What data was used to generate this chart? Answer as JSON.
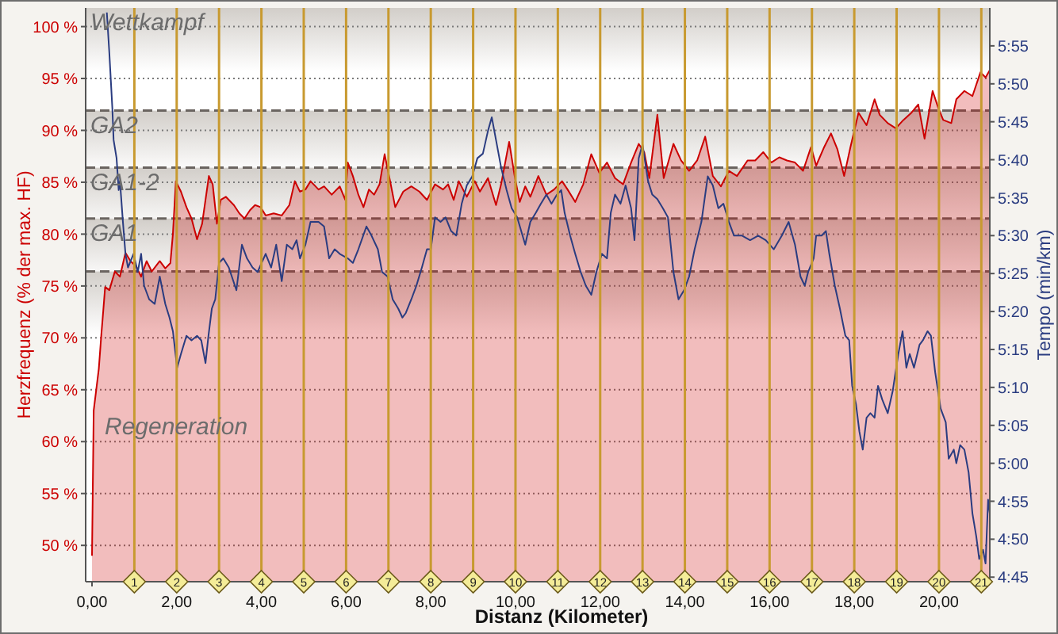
{
  "chart_data": {
    "type": "area",
    "xlabel": "Distanz (Kilometer)",
    "ylabel": "Herzfrequenz (% der max. HF)",
    "y2label": "Tempo (min/km)",
    "xlim": [
      -0.15,
      21.2
    ],
    "xticks": [
      {
        "value": 0,
        "label": "0,00"
      },
      {
        "value": 2,
        "label": "2,00"
      },
      {
        "value": 4,
        "label": "4,00"
      },
      {
        "value": 6,
        "label": "6,00"
      },
      {
        "value": 8,
        "label": "8,00"
      },
      {
        "value": 10,
        "label": "10,00"
      },
      {
        "value": 12,
        "label": "12,00"
      },
      {
        "value": 14,
        "label": "14,00"
      },
      {
        "value": 16,
        "label": "16,00"
      },
      {
        "value": 18,
        "label": "18,00"
      },
      {
        "value": 20,
        "label": "20,00"
      }
    ],
    "ylim": [
      46.5,
      101.8
    ],
    "yticks": [
      {
        "value": 50,
        "label": "50 %"
      },
      {
        "value": 55,
        "label": "55 %"
      },
      {
        "value": 60,
        "label": "60 %"
      },
      {
        "value": 65,
        "label": "65 %"
      },
      {
        "value": 70,
        "label": "70 %"
      },
      {
        "value": 75,
        "label": "75 %"
      },
      {
        "value": 80,
        "label": "80 %"
      },
      {
        "value": 85,
        "label": "85 %"
      },
      {
        "value": 90,
        "label": "90 %"
      },
      {
        "value": 95,
        "label": "95 %"
      },
      {
        "value": 100,
        "label": "100 %"
      }
    ],
    "y2lim": [
      4.74,
      6.0
    ],
    "y2ticks": [
      {
        "value": 4.75,
        "label": "4:45"
      },
      {
        "value": 4.8333,
        "label": "4:50"
      },
      {
        "value": 4.9167,
        "label": "4:55"
      },
      {
        "value": 5,
        "label": "5:00"
      },
      {
        "value": 5.0833,
        "label": "5:05"
      },
      {
        "value": 5.1667,
        "label": "5:10"
      },
      {
        "value": 5.25,
        "label": "5:15"
      },
      {
        "value": 5.3333,
        "label": "5:20"
      },
      {
        "value": 5.4167,
        "label": "5:25"
      },
      {
        "value": 5.5,
        "label": "5:30"
      },
      {
        "value": 5.5833,
        "label": "5:35"
      },
      {
        "value": 5.6667,
        "label": "5:40"
      },
      {
        "value": 5.75,
        "label": "5:45"
      },
      {
        "value": 5.8333,
        "label": "5:50"
      },
      {
        "value": 5.9167,
        "label": "5:55"
      }
    ],
    "grid": "y",
    "marker": "none",
    "series": [
      {
        "type": "area",
        "color": "#cc0000",
        "x": [
          0,
          0.04,
          0.16,
          0.22,
          0.25,
          0.31,
          0.41,
          0.54,
          0.66,
          0.79,
          0.91,
          1.04,
          1.16,
          1.29,
          1.41,
          1.6,
          1.73,
          1.85,
          1.91,
          1.98,
          2.1,
          2.23,
          2.35,
          2.48,
          2.6,
          2.76,
          2.85,
          2.95,
          3.04,
          3.16,
          3.35,
          3.48,
          3.6,
          3.73,
          3.85,
          3.98,
          4.1,
          4.29,
          4.48,
          4.66,
          4.79,
          4.91,
          5.04,
          5.16,
          5.35,
          5.48,
          5.66,
          5.85,
          5.98,
          6.04,
          6.16,
          6.29,
          6.41,
          6.54,
          6.66,
          6.79,
          6.91,
          7.04,
          7.16,
          7.35,
          7.54,
          7.73,
          7.91,
          8.1,
          8.29,
          8.41,
          8.54,
          8.66,
          8.85,
          9.04,
          9.16,
          9.35,
          9.54,
          9.66,
          9.85,
          9.98,
          10.1,
          10.23,
          10.35,
          10.54,
          10.73,
          10.91,
          11.1,
          11.23,
          11.41,
          11.6,
          11.79,
          11.98,
          12.16,
          12.35,
          12.54,
          12.73,
          12.91,
          13.04,
          13.16,
          13.35,
          13.5,
          13.73,
          13.91,
          14.1,
          14.29,
          14.48,
          14.66,
          14.85,
          15.04,
          15.23,
          15.48,
          15.66,
          15.85,
          16.04,
          16.23,
          16.41,
          16.6,
          16.79,
          16.98,
          17.1,
          17.29,
          17.45,
          17.6,
          17.76,
          17.91,
          18.1,
          18.29,
          18.48,
          18.6,
          18.79,
          18.98,
          19.16,
          19.35,
          19.51,
          19.66,
          19.85,
          19.98,
          20.1,
          20.29,
          20.41,
          20.6,
          20.79,
          20.98,
          21.1,
          21.2
        ],
        "values": [
          49,
          63,
          67,
          70.3,
          71.8,
          74.9,
          74.6,
          76.4,
          75.9,
          78.2,
          77.4,
          76.9,
          75.9,
          77.4,
          76.4,
          77.4,
          76.7,
          77.2,
          80.0,
          85.1,
          84.1,
          82.6,
          81.5,
          79.5,
          81.0,
          85.6,
          84.8,
          81.0,
          83.3,
          83.6,
          82.8,
          82.0,
          81.5,
          82.3,
          82.8,
          82.6,
          81.8,
          82.0,
          81.8,
          82.8,
          85.1,
          84.1,
          84.3,
          85.1,
          84.3,
          84.6,
          83.8,
          84.6,
          83.3,
          86.9,
          85.6,
          83.8,
          82.6,
          84.3,
          83.8,
          84.8,
          87.7,
          85.1,
          82.6,
          84.1,
          84.6,
          84.1,
          83.3,
          84.8,
          84.3,
          84.8,
          83.3,
          85.1,
          83.6,
          85.1,
          84.1,
          85.4,
          82.8,
          84.8,
          88.9,
          85.6,
          83.1,
          84.6,
          83.6,
          85.6,
          83.8,
          84.3,
          85.1,
          84.3,
          83.1,
          84.8,
          87.7,
          85.9,
          86.9,
          85.4,
          84.8,
          86.9,
          88.7,
          87.9,
          85.4,
          91.5,
          85.4,
          88.7,
          87.1,
          86.1,
          87.1,
          89.4,
          85.6,
          84.6,
          86.1,
          85.6,
          87.1,
          87.1,
          87.9,
          86.9,
          87.4,
          87.1,
          86.9,
          86.1,
          88.4,
          86.6,
          88.4,
          89.7,
          88.2,
          85.6,
          88.4,
          91.7,
          90.5,
          93.0,
          91.5,
          90.7,
          90.2,
          91.0,
          91.7,
          92.5,
          89.2,
          93.8,
          92.2,
          91.0,
          90.7,
          93.0,
          93.8,
          93.3,
          95.6,
          95.1,
          95.8
        ]
      },
      {
        "type": "line",
        "axis": "y2",
        "color": "#2a3c80",
        "x": [
          0.35,
          0.41,
          0.48,
          0.51,
          0.58,
          0.63,
          0.66,
          0.73,
          0.79,
          0.85,
          0.98,
          1.08,
          1.16,
          1.23,
          1.35,
          1.48,
          1.6,
          1.73,
          1.83,
          1.91,
          2.01,
          2.1,
          2.23,
          2.35,
          2.48,
          2.58,
          2.68,
          2.75,
          2.83,
          2.91,
          3.0,
          3.1,
          3.23,
          3.41,
          3.54,
          3.66,
          3.79,
          3.91,
          4.1,
          4.23,
          4.35,
          4.48,
          4.6,
          4.73,
          4.83,
          4.91,
          5.04,
          5.16,
          5.35,
          5.48,
          5.6,
          5.73,
          5.85,
          6.04,
          6.16,
          6.29,
          6.48,
          6.6,
          6.75,
          6.85,
          6.98,
          7.1,
          7.23,
          7.33,
          7.41,
          7.54,
          7.66,
          7.79,
          7.91,
          8.0,
          8.1,
          8.23,
          8.35,
          8.48,
          8.6,
          8.73,
          8.85,
          8.98,
          9.1,
          9.23,
          9.35,
          9.44,
          9.54,
          9.66,
          9.79,
          9.91,
          10.04,
          10.23,
          10.35,
          10.48,
          10.6,
          10.73,
          10.85,
          10.98,
          11.08,
          11.16,
          11.29,
          11.41,
          11.54,
          11.66,
          11.79,
          11.91,
          12.04,
          12.16,
          12.25,
          12.35,
          12.48,
          12.6,
          12.73,
          12.81,
          12.91,
          13.0,
          13.13,
          13.23,
          13.35,
          13.48,
          13.6,
          13.73,
          13.85,
          13.98,
          14.1,
          14.23,
          14.39,
          14.54,
          14.66,
          14.79,
          14.91,
          15.04,
          15.16,
          15.35,
          15.54,
          15.73,
          15.91,
          16.1,
          16.29,
          16.45,
          16.6,
          16.73,
          16.83,
          16.91,
          17.04,
          17.1,
          17.23,
          17.33,
          17.41,
          17.54,
          17.66,
          17.79,
          17.88,
          17.95,
          18.04,
          18.12,
          18.2,
          18.29,
          18.38,
          18.48,
          18.56,
          18.66,
          18.79,
          18.91,
          19.04,
          19.14,
          19.23,
          19.31,
          19.41,
          19.54,
          19.62,
          19.73,
          19.81,
          19.91,
          20.04,
          20.16,
          20.23,
          20.35,
          20.41,
          20.5,
          20.6,
          20.7,
          20.79,
          20.88,
          20.95,
          21.04,
          21.1,
          21.16,
          21.2
        ],
        "values": [
          5.99,
          5.9,
          5.78,
          5.71,
          5.67,
          5.6,
          5.62,
          5.53,
          5.46,
          5.43,
          5.46,
          5.42,
          5.46,
          5.39,
          5.36,
          5.35,
          5.41,
          5.35,
          5.32,
          5.29,
          5.21,
          5.24,
          5.28,
          5.27,
          5.28,
          5.27,
          5.22,
          5.28,
          5.34,
          5.36,
          5.44,
          5.45,
          5.43,
          5.38,
          5.48,
          5.45,
          5.43,
          5.42,
          5.46,
          5.43,
          5.48,
          5.4,
          5.48,
          5.47,
          5.49,
          5.45,
          5.48,
          5.53,
          5.53,
          5.52,
          5.45,
          5.47,
          5.46,
          5.45,
          5.44,
          5.47,
          5.52,
          5.5,
          5.47,
          5.42,
          5.41,
          5.36,
          5.34,
          5.32,
          5.33,
          5.36,
          5.39,
          5.43,
          5.47,
          5.47,
          5.54,
          5.53,
          5.54,
          5.51,
          5.5,
          5.57,
          5.61,
          5.63,
          5.67,
          5.68,
          5.73,
          5.76,
          5.71,
          5.65,
          5.6,
          5.56,
          5.54,
          5.48,
          5.53,
          5.55,
          5.57,
          5.59,
          5.57,
          5.59,
          5.6,
          5.55,
          5.5,
          5.46,
          5.42,
          5.39,
          5.37,
          5.42,
          5.46,
          5.45,
          5.55,
          5.59,
          5.57,
          5.61,
          5.56,
          5.49,
          5.67,
          5.7,
          5.62,
          5.59,
          5.58,
          5.56,
          5.54,
          5.42,
          5.36,
          5.38,
          5.41,
          5.47,
          5.53,
          5.63,
          5.61,
          5.56,
          5.57,
          5.53,
          5.5,
          5.5,
          5.49,
          5.5,
          5.49,
          5.47,
          5.5,
          5.53,
          5.48,
          5.41,
          5.39,
          5.42,
          5.45,
          5.5,
          5.5,
          5.51,
          5.46,
          5.39,
          5.34,
          5.28,
          5.27,
          5.17,
          5.13,
          5.07,
          5.03,
          5.1,
          5.11,
          5.1,
          5.17,
          5.14,
          5.11,
          5.16,
          5.24,
          5.29,
          5.21,
          5.24,
          5.21,
          5.26,
          5.27,
          5.29,
          5.28,
          5.2,
          5.12,
          5.09,
          5.01,
          5.03,
          5.0,
          5.04,
          5.03,
          4.98,
          4.89,
          4.84,
          4.79,
          4.81,
          4.78,
          4.92,
          4.89
        ]
      }
    ],
    "bands": [
      {
        "axis": "y",
        "from": 91.9,
        "to": 101.8,
        "label": "Wettkampf",
        "color": "#d2cec9"
      },
      {
        "axis": "y",
        "from": 86.4,
        "to": 91.9,
        "label": "GA2",
        "color": "#d2cec9"
      },
      {
        "axis": "y",
        "from": 81.5,
        "to": 86.4,
        "label": "GA1-2",
        "color": "#d2cec9"
      },
      {
        "axis": "y",
        "from": 76.4,
        "to": 81.5,
        "label": "GA1",
        "color": "#d2cec9"
      },
      {
        "axis": "y",
        "from": 46.5,
        "to": 76.4,
        "label": "Regeneration",
        "color": "#d2cec9"
      }
    ],
    "ref_lines": [
      {
        "axis": "x",
        "value": 1,
        "label": "1",
        "color": "#c89a30"
      },
      {
        "axis": "x",
        "value": 2,
        "label": "2",
        "color": "#c89a30"
      },
      {
        "axis": "x",
        "value": 3,
        "label": "3",
        "color": "#c89a30"
      },
      {
        "axis": "x",
        "value": 4,
        "label": "4",
        "color": "#c89a30"
      },
      {
        "axis": "x",
        "value": 5,
        "label": "5",
        "color": "#c89a30"
      },
      {
        "axis": "x",
        "value": 6,
        "label": "6",
        "color": "#c89a30"
      },
      {
        "axis": "x",
        "value": 7,
        "label": "7",
        "color": "#c89a30"
      },
      {
        "axis": "x",
        "value": 8,
        "label": "8",
        "color": "#c89a30"
      },
      {
        "axis": "x",
        "value": 9,
        "label": "9",
        "color": "#c89a30"
      },
      {
        "axis": "x",
        "value": 10,
        "label": "10",
        "color": "#c89a30"
      },
      {
        "axis": "x",
        "value": 11,
        "label": "11",
        "color": "#c89a30"
      },
      {
        "axis": "x",
        "value": 12,
        "label": "12",
        "color": "#c89a30"
      },
      {
        "axis": "x",
        "value": 13,
        "label": "13",
        "color": "#c89a30"
      },
      {
        "axis": "x",
        "value": 14,
        "label": "14",
        "color": "#c89a30"
      },
      {
        "axis": "x",
        "value": 15,
        "label": "15",
        "color": "#c89a30"
      },
      {
        "axis": "x",
        "value": 16,
        "label": "16",
        "color": "#c89a30"
      },
      {
        "axis": "x",
        "value": 17,
        "label": "17",
        "color": "#c89a30"
      },
      {
        "axis": "x",
        "value": 18,
        "label": "18",
        "color": "#c89a30"
      },
      {
        "axis": "x",
        "value": 19,
        "label": "19",
        "color": "#c89a30"
      },
      {
        "axis": "x",
        "value": 20,
        "label": "20",
        "color": "#c89a30"
      },
      {
        "axis": "x",
        "value": 21,
        "label": "21",
        "color": "#c89a30"
      }
    ]
  }
}
